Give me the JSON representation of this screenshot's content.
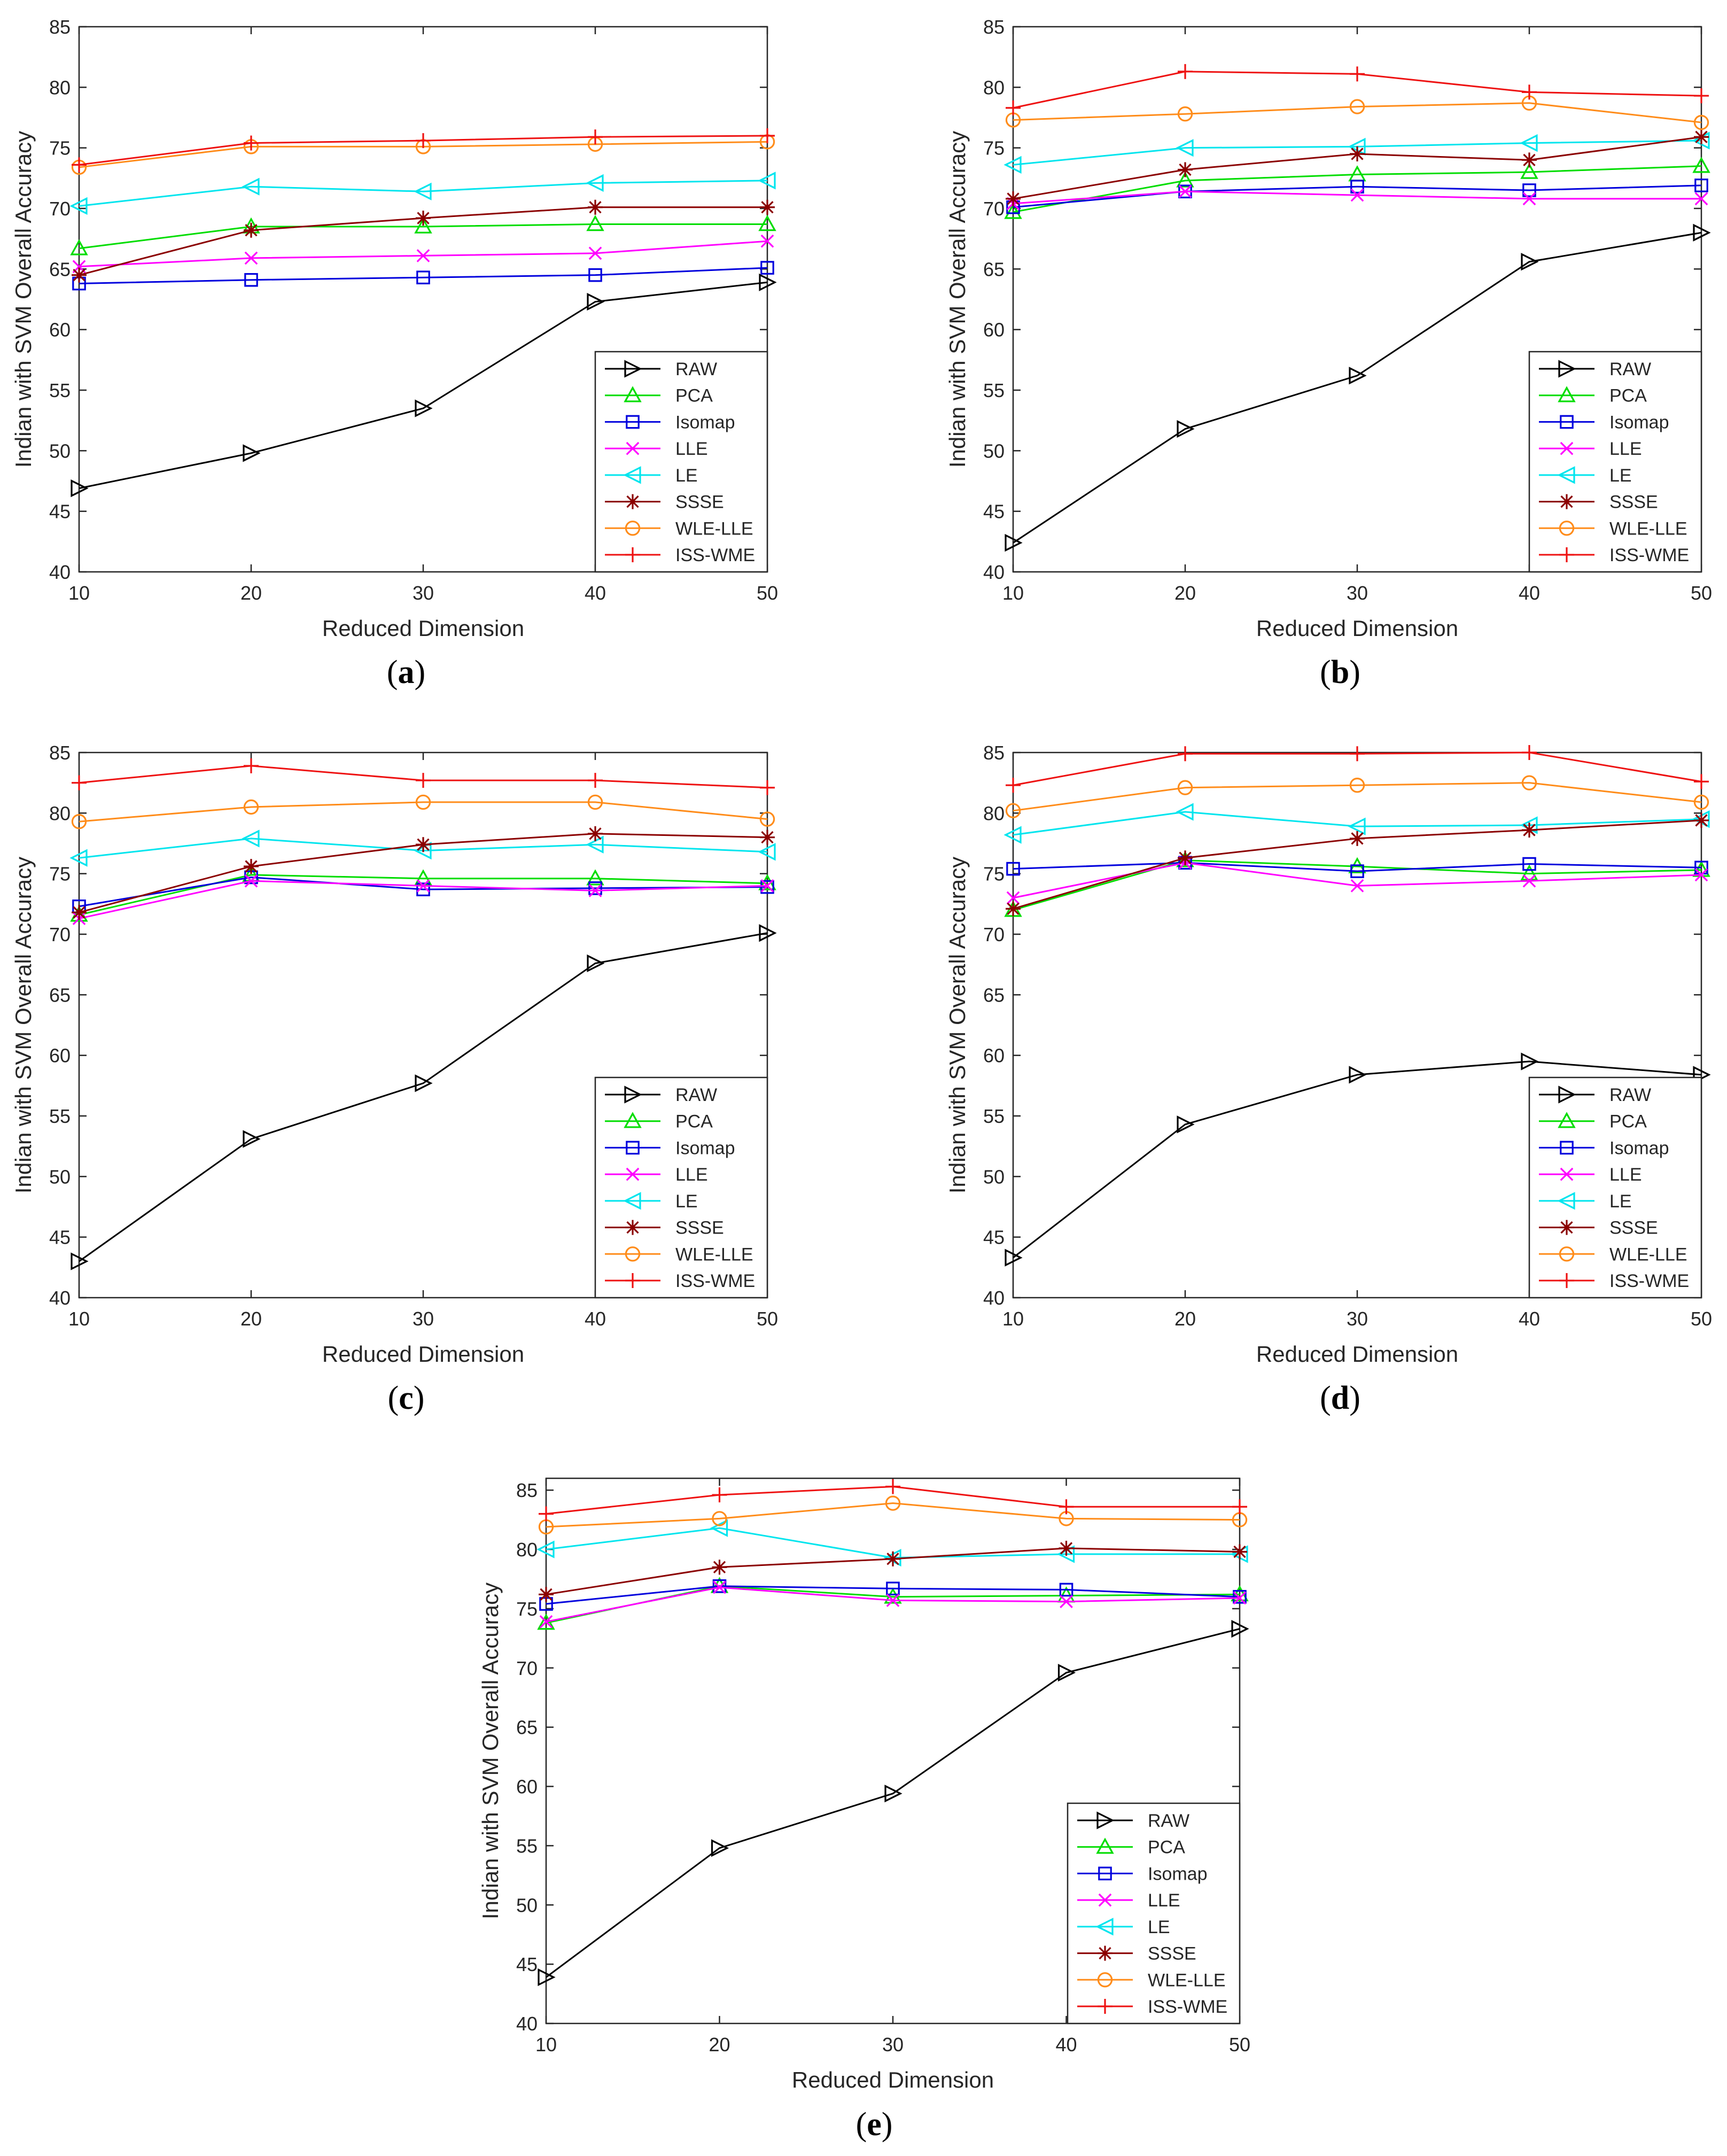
{
  "legend_entries": [
    "RAW",
    "PCA",
    "Isomap",
    "LLE",
    "LE",
    "SSSE",
    "WLE-LLE",
    "ISS-WME"
  ],
  "colors": {
    "RAW": "#000000",
    "PCA": "#00dd00",
    "Isomap": "#0000dd",
    "LLE": "#ff00ff",
    "LE": "#00e5ee",
    "SSSE": "#8b0000",
    "WLE-LLE": "#ff8c1a",
    "ISS-WME": "#ee1111"
  },
  "markers": {
    "RAW": "triangle-right",
    "PCA": "triangle-up",
    "Isomap": "square",
    "LLE": "x",
    "LE": "triangle-left",
    "SSSE": "asterisk",
    "WLE-LLE": "circle",
    "ISS-WME": "plus"
  },
  "chart_data": [
    {
      "panel": "(a)",
      "type": "line",
      "xlabel": "Reduced Dimension",
      "ylabel": "Indian with SVM Overall Accuracy",
      "x": [
        10,
        20,
        30,
        40,
        50
      ],
      "xlim": [
        10,
        50
      ],
      "ylim": [
        40,
        85
      ],
      "xticks": [
        "10",
        "20",
        "30",
        "40",
        "50"
      ],
      "yticks": [
        "40",
        "45",
        "50",
        "55",
        "60",
        "65",
        "70",
        "75",
        "80",
        "85"
      ],
      "legend_position": "bottom-right",
      "series": [
        {
          "name": "RAW",
          "values": [
            46.9,
            49.8,
            53.5,
            62.3,
            63.9
          ]
        },
        {
          "name": "PCA",
          "values": [
            66.7,
            68.5,
            68.5,
            68.7,
            68.7
          ]
        },
        {
          "name": "Isomap",
          "values": [
            63.8,
            64.1,
            64.3,
            64.5,
            65.1
          ]
        },
        {
          "name": "LLE",
          "values": [
            65.2,
            65.9,
            66.1,
            66.3,
            67.3
          ]
        },
        {
          "name": "LE",
          "values": [
            70.2,
            71.8,
            71.4,
            72.1,
            72.3
          ]
        },
        {
          "name": "SSSE",
          "values": [
            64.5,
            68.2,
            69.2,
            70.1,
            70.1
          ]
        },
        {
          "name": "WLE-LLE",
          "values": [
            73.4,
            75.1,
            75.1,
            75.3,
            75.5
          ]
        },
        {
          "name": "ISS-WME",
          "values": [
            73.6,
            75.4,
            75.6,
            75.9,
            76.0
          ]
        }
      ]
    },
    {
      "panel": "(b)",
      "type": "line",
      "xlabel": "Reduced Dimension",
      "ylabel": "Indian with SVM Overall Accuracy",
      "x": [
        10,
        20,
        30,
        40,
        50
      ],
      "xlim": [
        10,
        50
      ],
      "ylim": [
        40,
        85
      ],
      "xticks": [
        "10",
        "20",
        "30",
        "40",
        "50"
      ],
      "yticks": [
        "40",
        "45",
        "50",
        "55",
        "60",
        "65",
        "70",
        "75",
        "80",
        "85"
      ],
      "legend_position": "bottom-right",
      "series": [
        {
          "name": "RAW",
          "values": [
            42.4,
            51.8,
            56.2,
            65.6,
            68.0
          ]
        },
        {
          "name": "PCA",
          "values": [
            69.7,
            72.3,
            72.8,
            73.0,
            73.5
          ]
        },
        {
          "name": "Isomap",
          "values": [
            70.1,
            71.4,
            71.8,
            71.5,
            71.9
          ]
        },
        {
          "name": "LLE",
          "values": [
            70.4,
            71.4,
            71.1,
            70.8,
            70.8
          ]
        },
        {
          "name": "LE",
          "values": [
            73.6,
            75.0,
            75.1,
            75.4,
            75.6
          ]
        },
        {
          "name": "SSSE",
          "values": [
            70.8,
            73.2,
            74.5,
            74.0,
            75.9
          ]
        },
        {
          "name": "WLE-LLE",
          "values": [
            77.3,
            77.8,
            78.4,
            78.7,
            77.1
          ]
        },
        {
          "name": "ISS-WME",
          "values": [
            78.3,
            81.3,
            81.1,
            79.6,
            79.3
          ]
        }
      ]
    },
    {
      "panel": "(c)",
      "type": "line",
      "xlabel": "Reduced Dimension",
      "ylabel": "Indian with SVM Overall Accuracy",
      "x": [
        10,
        20,
        30,
        40,
        50
      ],
      "xlim": [
        10,
        50
      ],
      "ylim": [
        40,
        85
      ],
      "xticks": [
        "10",
        "20",
        "30",
        "40",
        "50"
      ],
      "yticks": [
        "40",
        "45",
        "50",
        "55",
        "60",
        "65",
        "70",
        "75",
        "80",
        "85"
      ],
      "legend_position": "bottom-right",
      "series": [
        {
          "name": "RAW",
          "values": [
            43.0,
            53.1,
            57.7,
            67.6,
            70.1
          ]
        },
        {
          "name": "PCA",
          "values": [
            71.6,
            74.9,
            74.6,
            74.6,
            74.2
          ]
        },
        {
          "name": "Isomap",
          "values": [
            72.3,
            74.7,
            73.7,
            73.8,
            73.9
          ]
        },
        {
          "name": "LLE",
          "values": [
            71.3,
            74.4,
            74.0,
            73.6,
            74.0
          ]
        },
        {
          "name": "LE",
          "values": [
            76.3,
            77.9,
            76.9,
            77.4,
            76.8
          ]
        },
        {
          "name": "SSSE",
          "values": [
            71.8,
            75.6,
            77.4,
            78.3,
            78.0
          ]
        },
        {
          "name": "WLE-LLE",
          "values": [
            79.3,
            80.5,
            80.9,
            80.9,
            79.5
          ]
        },
        {
          "name": "ISS-WME",
          "values": [
            82.5,
            83.9,
            82.7,
            82.7,
            82.1
          ]
        }
      ]
    },
    {
      "panel": "(d)",
      "type": "line",
      "xlabel": "Reduced Dimension",
      "ylabel": "Indian with SVM Overall Accuracy",
      "x": [
        10,
        20,
        30,
        40,
        50
      ],
      "xlim": [
        10,
        50
      ],
      "ylim": [
        40,
        85
      ],
      "xticks": [
        "10",
        "20",
        "30",
        "40",
        "50"
      ],
      "yticks": [
        "40",
        "45",
        "50",
        "55",
        "60",
        "65",
        "70",
        "75",
        "80",
        "85"
      ],
      "legend_position": "bottom-right",
      "series": [
        {
          "name": "RAW",
          "values": [
            43.3,
            54.3,
            58.4,
            59.5,
            58.4
          ]
        },
        {
          "name": "PCA",
          "values": [
            72.0,
            76.1,
            75.6,
            75.0,
            75.3
          ]
        },
        {
          "name": "Isomap",
          "values": [
            75.4,
            75.9,
            75.2,
            75.8,
            75.5
          ]
        },
        {
          "name": "LLE",
          "values": [
            73.0,
            75.9,
            74.0,
            74.4,
            74.9
          ]
        },
        {
          "name": "LE",
          "values": [
            78.2,
            80.1,
            78.9,
            79.0,
            79.5
          ]
        },
        {
          "name": "SSSE",
          "values": [
            72.1,
            76.3,
            77.9,
            78.6,
            79.4
          ]
        },
        {
          "name": "WLE-LLE",
          "values": [
            80.2,
            82.1,
            82.3,
            82.5,
            80.9
          ]
        },
        {
          "name": "ISS-WME",
          "values": [
            82.3,
            84.9,
            84.9,
            85.0,
            82.6
          ]
        }
      ]
    },
    {
      "panel": "(e)",
      "type": "line",
      "xlabel": "Reduced Dimension",
      "ylabel": "Indian with SVM Overall Accuracy",
      "x": [
        10,
        20,
        30,
        40,
        50
      ],
      "xlim": [
        10,
        50
      ],
      "ylim": [
        40,
        86
      ],
      "xticks": [
        "10",
        "20",
        "30",
        "40",
        "50"
      ],
      "yticks": [
        "40",
        "45",
        "50",
        "55",
        "60",
        "65",
        "70",
        "75",
        "80",
        "85"
      ],
      "legend_position": "bottom-right",
      "series": [
        {
          "name": "RAW",
          "values": [
            43.9,
            54.8,
            59.4,
            69.6,
            73.3
          ]
        },
        {
          "name": "PCA",
          "values": [
            73.8,
            76.9,
            76.0,
            76.1,
            76.2
          ]
        },
        {
          "name": "Isomap",
          "values": [
            75.4,
            76.9,
            76.7,
            76.6,
            76.0
          ]
        },
        {
          "name": "LLE",
          "values": [
            73.9,
            76.8,
            75.7,
            75.6,
            75.9
          ]
        },
        {
          "name": "LE",
          "values": [
            80.0,
            81.8,
            79.3,
            79.6,
            79.6
          ]
        },
        {
          "name": "SSSE",
          "values": [
            76.2,
            78.5,
            79.2,
            80.1,
            79.8
          ]
        },
        {
          "name": "WLE-LLE",
          "values": [
            81.9,
            82.6,
            83.9,
            82.6,
            82.5
          ]
        },
        {
          "name": "ISS-WME",
          "values": [
            83.0,
            84.6,
            85.3,
            83.6,
            83.6
          ]
        }
      ]
    }
  ]
}
